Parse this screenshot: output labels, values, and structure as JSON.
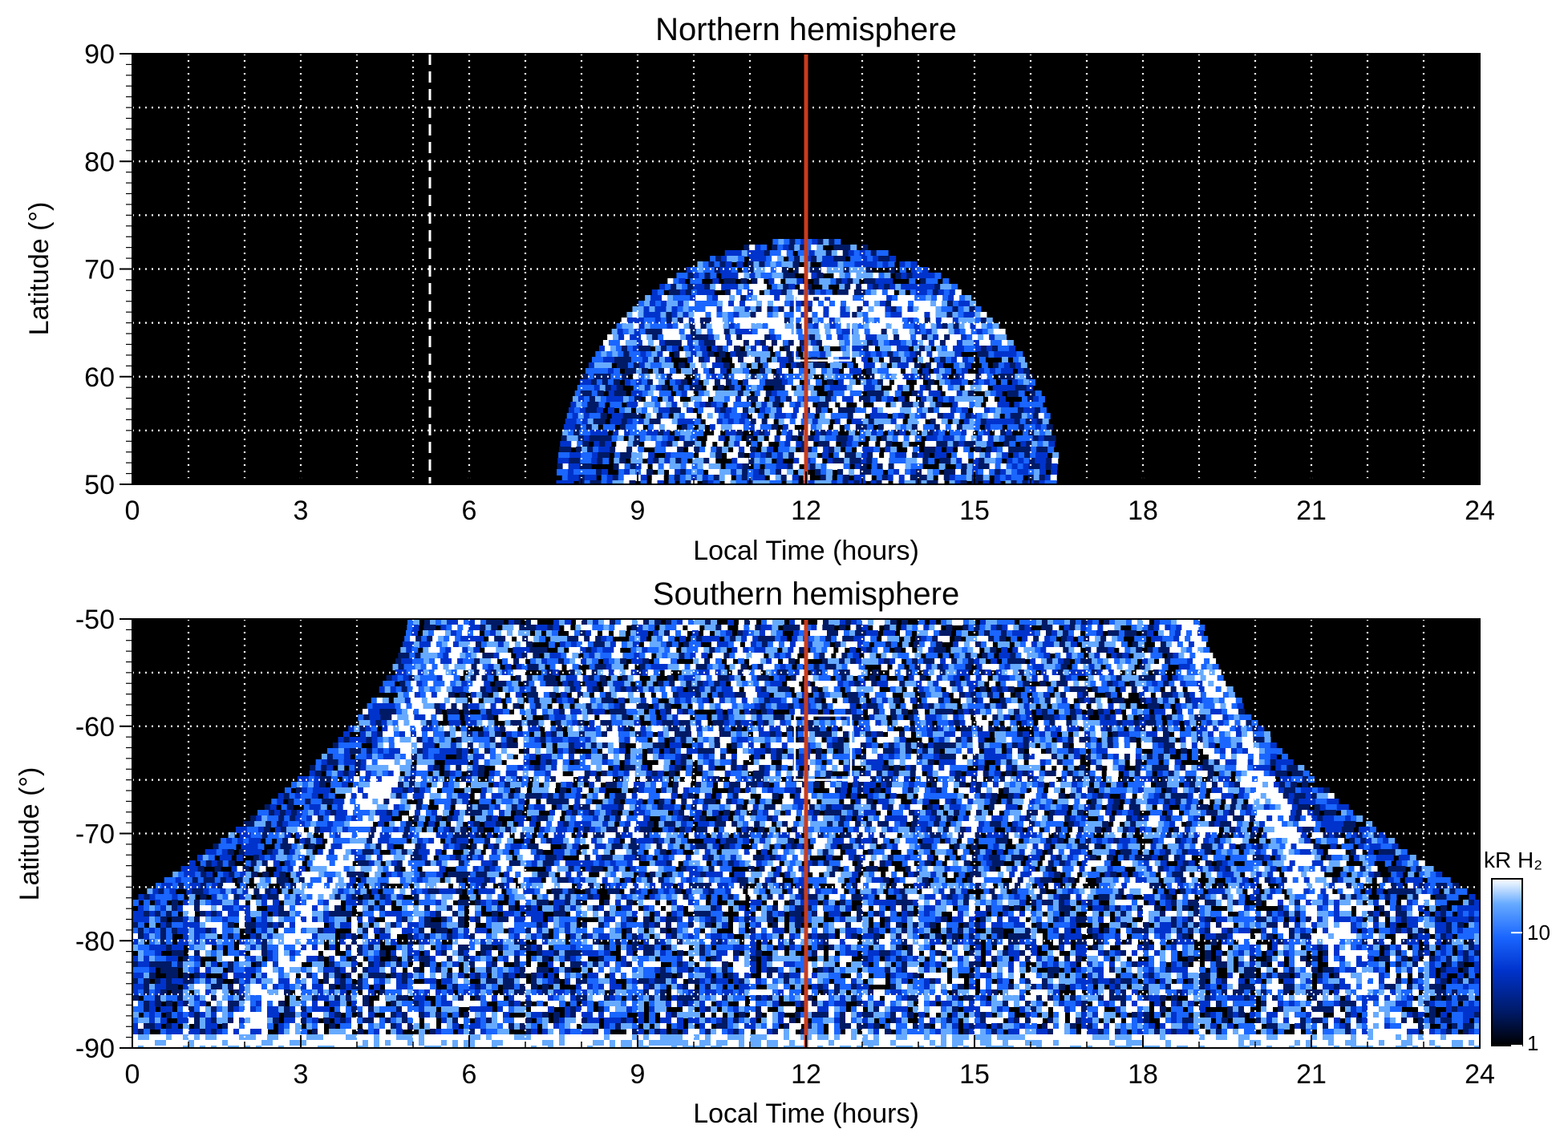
{
  "chart_data": [
    {
      "type": "heatmap",
      "title": "Northern hemisphere",
      "xlabel": "Local Time (hours)",
      "ylabel": "Latitude (°)",
      "xlim": [
        0,
        24
      ],
      "ylim": [
        50,
        90
      ],
      "x_ticks": [
        "0",
        "3",
        "6",
        "9",
        "12",
        "15",
        "18",
        "21",
        "24"
      ],
      "y_ticks": [
        "50",
        "60",
        "70",
        "80",
        "90"
      ],
      "grid": true,
      "background": "#000000",
      "emission_region": {
        "lt_center": 12,
        "lt_min_at_lat50": 7.6,
        "lt_max_at_lat50": 16.5,
        "peak_lat": 73,
        "bright_band_lat": [
          63,
          68
        ]
      },
      "markers": {
        "noon_line_lt": 12,
        "noon_line_color": "#c83c1e",
        "dashed_line_lt": 5.3,
        "box": {
          "lt": [
            11.8,
            12.8
          ],
          "lat": [
            61.5,
            67.5
          ]
        }
      }
    },
    {
      "type": "heatmap",
      "title": "Southern hemisphere",
      "xlabel": "Local Time (hours)",
      "ylabel": "Latitude (°)",
      "xlim": [
        0,
        24
      ],
      "ylim": [
        -90,
        -50
      ],
      "x_ticks": [
        "0",
        "3",
        "6",
        "9",
        "12",
        "15",
        "18",
        "21",
        "24"
      ],
      "y_ticks": [
        "-50",
        "-60",
        "-70",
        "-80",
        "-90"
      ],
      "grid": true,
      "background": "#000000",
      "emission_region": {
        "lt_center": 12,
        "lt_min_at_lat50": 4.9,
        "lt_max_at_lat50": 19.0,
        "edge_lat_at_lt0": -76,
        "bright_arcs_lt_at_lat50": [
          5.8,
          18.5
        ]
      },
      "markers": {
        "noon_line_lt": 12,
        "noon_line_color": "#c83c1e",
        "box": {
          "lt": [
            11.8,
            12.8
          ],
          "lat": [
            -65,
            -59
          ]
        }
      }
    }
  ],
  "colorbar": {
    "label": "kR H₂",
    "ticks": [
      "1",
      "10"
    ],
    "scale": "log",
    "range": [
      1,
      30
    ],
    "colors": [
      "#000000",
      "#001a66",
      "#0033cc",
      "#1a66ff",
      "#66aaff",
      "#ffffff"
    ]
  }
}
